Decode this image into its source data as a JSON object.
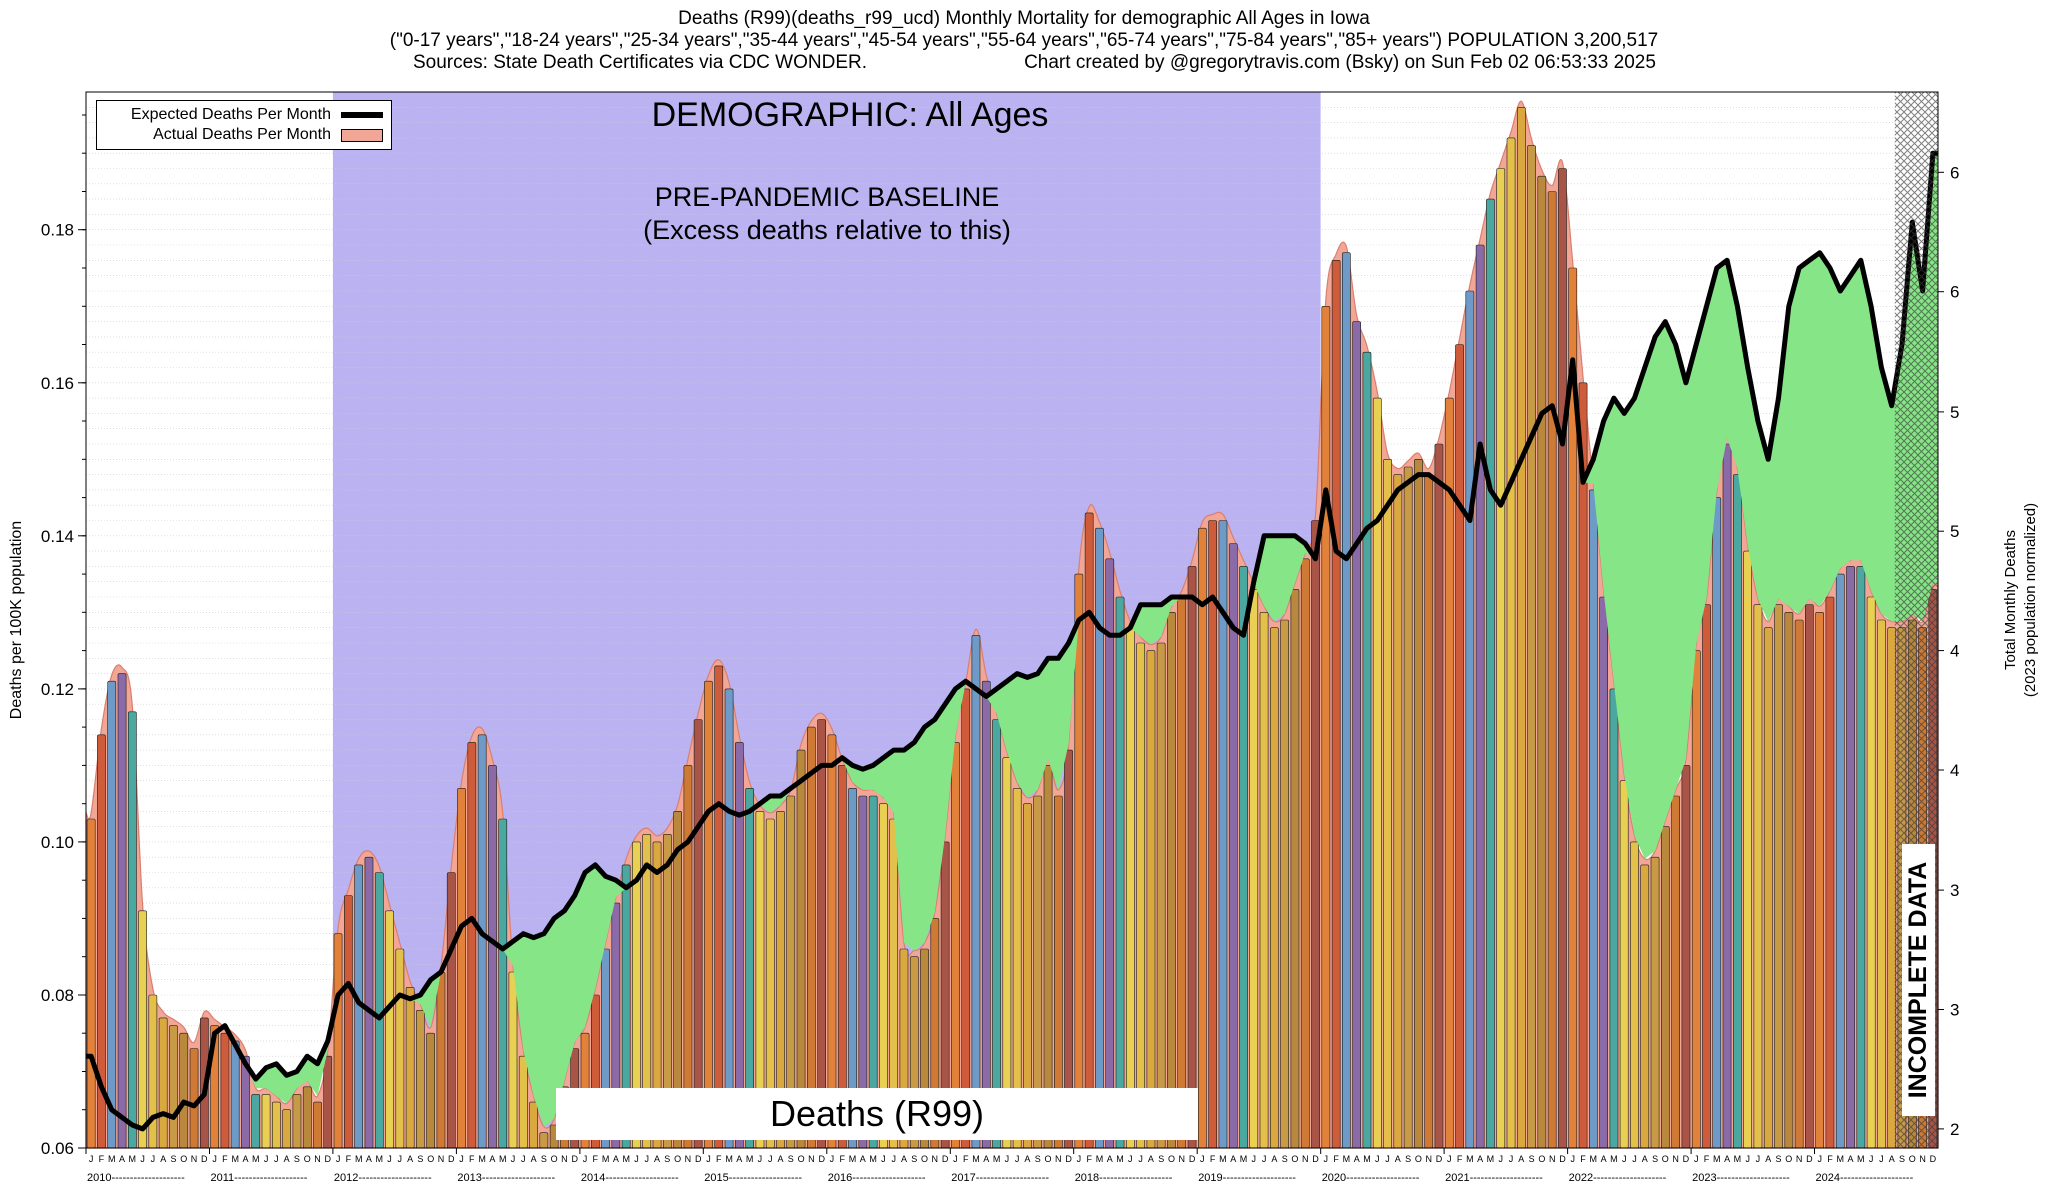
{
  "title": {
    "line1": "Deaths (R99)(deaths_r99_ucd) Monthly Mortality for demographic All Ages in Iowa",
    "line2": "(\"0-17 years\",\"18-24 years\",\"25-34 years\",\"35-44 years\",\"45-54 years\",\"55-64 years\",\"65-74 years\",\"75-84 years\",\"85+ years\") POPULATION 3,200,517",
    "sources": "Sources: State Death Certificates via CDC WONDER.",
    "credit": "Chart created by @gregorytravis.com (Bsky) on Sun Feb 02 06:53:33 2025"
  },
  "legend": {
    "expected_label": "Expected Deaths Per Month",
    "actual_label": "Actual Deaths Per Month",
    "expected_color": "#000000"
  },
  "annotations": {
    "demographic": "DEMOGRAPHIC: All Ages",
    "baseline_line1": "PRE-PANDEMIC BASELINE",
    "baseline_line2": "(Excess deaths relative to this)",
    "bottom_label": "Deaths (R99)",
    "incomplete": "INCOMPLETE DATA"
  },
  "axes": {
    "left_label": "Deaths per 100K population",
    "right_label_line1": "Total Monthly Deaths",
    "right_label_line2": "(2023 population normalized)",
    "left_ticks": [
      {
        "value": 0.06,
        "label": "0.06"
      },
      {
        "value": 0.08,
        "label": "0.08"
      },
      {
        "value": 0.1,
        "label": "0.10"
      },
      {
        "value": 0.12,
        "label": "0.12"
      },
      {
        "value": 0.14,
        "label": "0.14"
      },
      {
        "value": 0.16,
        "label": "0.16"
      },
      {
        "value": 0.18,
        "label": "0.18"
      }
    ],
    "right_ticks": [
      {
        "value": 0.0625,
        "label": "2"
      },
      {
        "value": 0.0781,
        "label": "3"
      },
      {
        "value": 0.0937,
        "label": "3"
      },
      {
        "value": 0.1094,
        "label": "4"
      },
      {
        "value": 0.125,
        "label": "4"
      },
      {
        "value": 0.1406,
        "label": "5"
      },
      {
        "value": 0.1562,
        "label": "5"
      },
      {
        "value": 0.1719,
        "label": "6"
      },
      {
        "value": 0.1875,
        "label": "6"
      }
    ]
  },
  "chart_data": {
    "type": "bar",
    "title": "Deaths (R99) Monthly Mortality, All Ages, Iowa, 2010-2024",
    "ylabel_left": "Deaths per 100K population",
    "ylabel_right": "Total Monthly Deaths (2023 population normalized)",
    "ylim_left": [
      0.06,
      0.198
    ],
    "years": [
      2010,
      2011,
      2012,
      2013,
      2014,
      2015,
      2016,
      2017,
      2018,
      2019,
      2020,
      2021,
      2022,
      2023,
      2024
    ],
    "month_letters": [
      "J",
      "F",
      "M",
      "A",
      "M",
      "J",
      "J",
      "A",
      "S",
      "O",
      "N",
      "D"
    ],
    "baseline_region": {
      "from": "2012-01",
      "to": "2019-12",
      "start_index": 24,
      "end_index": 119,
      "color": "#bbb2f2"
    },
    "incomplete_from_index": 176,
    "deficit_fill_color": "#86e586",
    "actual_envelope_color": "#f2a696",
    "month_bar_colors": [
      "#E2823A",
      "#CE5B3A",
      "#6E9AC8",
      "#8B6AA8",
      "#4AA8A0",
      "#E8D152",
      "#E3C04A",
      "#D9A93F",
      "#C79A45",
      "#B8893C",
      "#CE7A35",
      "#A85548"
    ],
    "series": [
      {
        "name": "Actual Deaths Per Month",
        "type": "bar",
        "values_by_year": {
          "2010": [
            0.103,
            0.114,
            0.121,
            0.122,
            0.117,
            0.091,
            0.08,
            0.077,
            0.076,
            0.075,
            0.073,
            0.077
          ],
          "2011": [
            0.076,
            0.075,
            0.074,
            0.072,
            0.067,
            0.067,
            0.066,
            0.065,
            0.067,
            0.068,
            0.066,
            0.072
          ],
          "2012": [
            0.088,
            0.093,
            0.097,
            0.098,
            0.096,
            0.091,
            0.086,
            0.081,
            0.078,
            0.075,
            0.083,
            0.096
          ],
          "2013": [
            0.107,
            0.113,
            0.114,
            0.11,
            0.103,
            0.083,
            0.072,
            0.066,
            0.062,
            0.063,
            0.068,
            0.073
          ],
          "2014": [
            0.075,
            0.08,
            0.086,
            0.092,
            0.097,
            0.1,
            0.101,
            0.1,
            0.101,
            0.104,
            0.11,
            0.116
          ],
          "2015": [
            0.121,
            0.123,
            0.12,
            0.113,
            0.107,
            0.104,
            0.103,
            0.104,
            0.106,
            0.112,
            0.115,
            0.116
          ],
          "2016": [
            0.114,
            0.11,
            0.107,
            0.106,
            0.106,
            0.105,
            0.103,
            0.086,
            0.085,
            0.086,
            0.09,
            0.1
          ],
          "2017": [
            0.113,
            0.12,
            0.127,
            0.121,
            0.116,
            0.111,
            0.107,
            0.105,
            0.106,
            0.11,
            0.106,
            0.112
          ],
          "2018": [
            0.135,
            0.143,
            0.141,
            0.137,
            0.132,
            0.128,
            0.126,
            0.125,
            0.126,
            0.13,
            0.132,
            0.136
          ],
          "2019": [
            0.141,
            0.142,
            0.142,
            0.139,
            0.136,
            0.133,
            0.13,
            0.128,
            0.129,
            0.133,
            0.137,
            0.142
          ],
          "2020": [
            0.17,
            0.176,
            0.177,
            0.168,
            0.164,
            0.158,
            0.15,
            0.148,
            0.149,
            0.15,
            0.148,
            0.152
          ],
          "2021": [
            0.158,
            0.165,
            0.172,
            0.178,
            0.184,
            0.188,
            0.192,
            0.196,
            0.191,
            0.187,
            0.185,
            0.188
          ],
          "2022": [
            0.175,
            0.16,
            0.146,
            0.132,
            0.12,
            0.108,
            0.1,
            0.097,
            0.098,
            0.102,
            0.106,
            0.11
          ],
          "2023": [
            0.125,
            0.131,
            0.145,
            0.152,
            0.148,
            0.138,
            0.131,
            0.128,
            0.131,
            0.13,
            0.129,
            0.131
          ],
          "2024": [
            0.13,
            0.132,
            0.135,
            0.136,
            0.136,
            0.132,
            0.129,
            0.128,
            0.128,
            0.129,
            0.128,
            0.133
          ]
        }
      },
      {
        "name": "Expected Deaths Per Month",
        "type": "line",
        "color": "#000000",
        "values_by_year": {
          "2010": [
            0.072,
            0.068,
            0.065,
            0.064,
            0.063,
            0.0625,
            0.064,
            0.0645,
            0.064,
            0.066,
            0.0655,
            0.067
          ],
          "2011": [
            0.075,
            0.076,
            0.0735,
            0.071,
            0.069,
            0.0705,
            0.071,
            0.0695,
            0.07,
            0.072,
            0.071,
            0.074
          ],
          "2012": [
            0.08,
            0.0815,
            0.079,
            0.078,
            0.077,
            0.0785,
            0.08,
            0.0795,
            0.08,
            0.082,
            0.083,
            0.086
          ],
          "2013": [
            0.089,
            0.09,
            0.088,
            0.087,
            0.086,
            0.087,
            0.088,
            0.0875,
            0.088,
            0.09,
            0.091,
            0.093
          ],
          "2014": [
            0.096,
            0.097,
            0.0955,
            0.095,
            0.094,
            0.095,
            0.097,
            0.096,
            0.097,
            0.099,
            0.1,
            0.102
          ],
          "2015": [
            0.104,
            0.105,
            0.104,
            0.1035,
            0.104,
            0.105,
            0.106,
            0.106,
            0.107,
            0.108,
            0.109,
            0.11
          ],
          "2016": [
            0.11,
            0.111,
            0.11,
            0.1095,
            0.11,
            0.111,
            0.112,
            0.112,
            0.113,
            0.115,
            0.116,
            0.118
          ],
          "2017": [
            0.12,
            0.121,
            0.12,
            0.119,
            0.12,
            0.121,
            0.122,
            0.1215,
            0.122,
            0.124,
            0.124,
            0.126
          ],
          "2018": [
            0.129,
            0.13,
            0.128,
            0.127,
            0.127,
            0.128,
            0.131,
            0.131,
            0.131,
            0.132,
            0.132,
            0.132
          ],
          "2019": [
            0.131,
            0.132,
            0.13,
            0.128,
            0.127,
            0.134,
            0.14,
            0.14,
            0.14,
            0.14,
            0.139,
            0.137
          ],
          "2020": [
            0.146,
            0.138,
            0.137,
            0.139,
            0.141,
            0.142,
            0.144,
            0.146,
            0.147,
            0.148,
            0.148,
            0.147
          ],
          "2021": [
            0.146,
            0.144,
            0.142,
            0.152,
            0.146,
            0.144,
            0.147,
            0.15,
            0.153,
            0.156,
            0.157,
            0.152
          ],
          "2022": [
            0.163,
            0.147,
            0.15,
            0.155,
            0.158,
            0.156,
            0.158,
            0.162,
            0.166,
            0.168,
            0.165,
            0.16
          ],
          "2023": [
            0.165,
            0.17,
            0.175,
            0.176,
            0.17,
            0.162,
            0.155,
            0.15,
            0.158,
            0.17,
            0.175,
            0.176
          ],
          "2024": [
            0.177,
            0.175,
            0.172,
            0.174,
            0.176,
            0.17,
            0.162,
            0.157,
            0.165,
            0.181,
            0.172,
            0.19
          ]
        }
      }
    ]
  }
}
